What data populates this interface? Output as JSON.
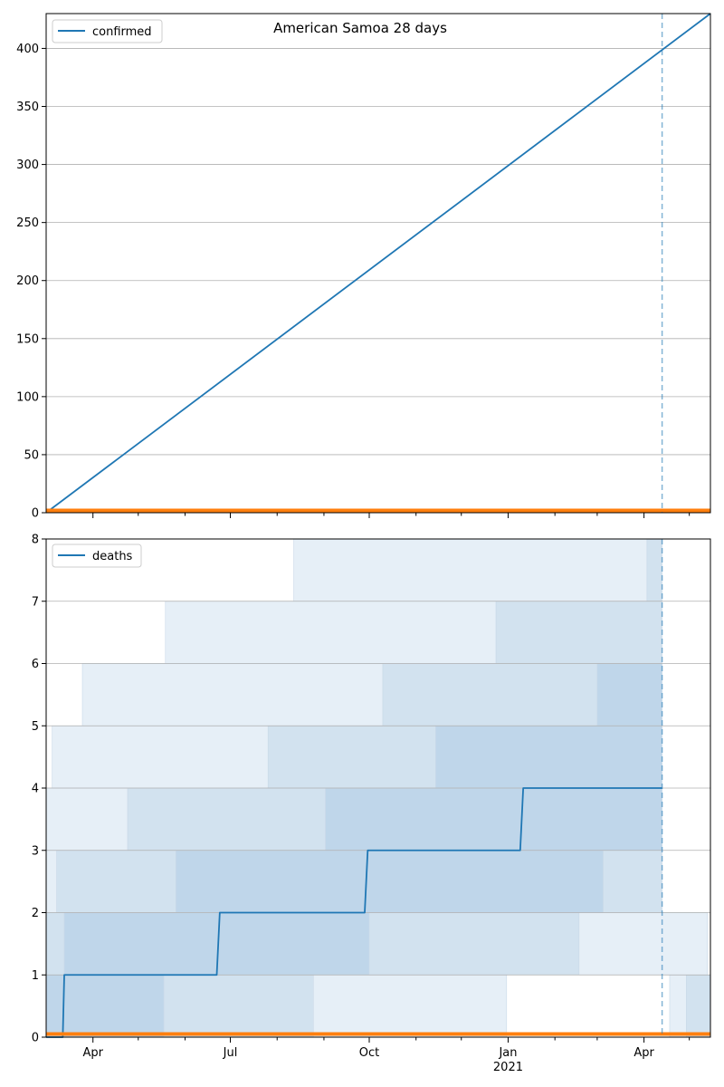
{
  "chart_data": [
    {
      "type": "line",
      "title": "American Samoa 28 days",
      "x_range": [
        "2020-03-01",
        "2021-05-15"
      ],
      "ylim": [
        0,
        430
      ],
      "y_ticks": [
        0,
        50,
        100,
        150,
        200,
        250,
        300,
        350,
        400
      ],
      "grid": "y",
      "legend": "top-left",
      "vline_date": "2021-04-13",
      "series": [
        {
          "name": "confirmed",
          "color": "#1f77b4",
          "points": [
            [
              "2020-03-01",
              0
            ],
            [
              "2021-05-15",
              430
            ]
          ]
        },
        {
          "color": "#ff7f0e",
          "points": [
            [
              "2020-03-01",
              2
            ],
            [
              "2021-05-15",
              2
            ]
          ]
        }
      ]
    },
    {
      "type": "line",
      "ylim": [
        0,
        8
      ],
      "y_ticks": [
        0,
        1,
        2,
        3,
        4,
        5,
        6,
        7,
        8
      ],
      "x_ticks": [
        {
          "date": "2020-04-01",
          "label": "Apr",
          "sub": ""
        },
        {
          "date": "2020-07-01",
          "label": "Jul",
          "sub": ""
        },
        {
          "date": "2020-10-01",
          "label": "Oct",
          "sub": ""
        },
        {
          "date": "2021-01-01",
          "label": "Jan",
          "sub": "2021"
        },
        {
          "date": "2021-04-01",
          "label": "Apr",
          "sub": ""
        }
      ],
      "grid": "y",
      "legend": "top-left",
      "vline_date": "2021-04-13",
      "series": [
        {
          "name": "deaths",
          "color": "#1f77b4",
          "points": [
            [
              "2020-03-01",
              0
            ],
            [
              "2020-03-12",
              0
            ],
            [
              "2020-03-13",
              1
            ],
            [
              "2020-06-22",
              1
            ],
            [
              "2020-06-24",
              2
            ],
            [
              "2020-09-28",
              2
            ],
            [
              "2020-09-30",
              3
            ],
            [
              "2021-01-09",
              3
            ],
            [
              "2021-01-11",
              4
            ],
            [
              "2021-04-13",
              4
            ]
          ]
        },
        {
          "color": "#ff7f0e",
          "points": [
            [
              "2020-03-01",
              0.05
            ],
            [
              "2021-05-15",
              0.05
            ]
          ]
        }
      ],
      "bands": [
        {
          "y0": 0,
          "y1": 1,
          "segments": [
            [
              "2020-03-01",
              "2020-05-18",
              3
            ],
            [
              "2020-05-18",
              "2020-08-25",
              2
            ],
            [
              "2020-08-25",
              "2020-12-31",
              1
            ],
            [
              "2020-12-31",
              "2021-04-18",
              0
            ],
            [
              "2021-04-18",
              "2021-04-29",
              1
            ],
            [
              "2021-04-29",
              "2021-05-15",
              2
            ]
          ]
        },
        {
          "y0": 1,
          "y1": 2,
          "segments": [
            [
              "2020-03-01",
              "2020-03-13",
              2
            ],
            [
              "2020-03-13",
              "2020-10-01",
              3
            ],
            [
              "2020-10-01",
              "2021-02-17",
              2
            ],
            [
              "2021-02-17",
              "2021-05-13",
              1
            ],
            [
              "2021-05-13",
              "2021-05-15",
              0
            ]
          ]
        },
        {
          "y0": 2,
          "y1": 3,
          "segments": [
            [
              "2020-03-01",
              "2020-03-08",
              1
            ],
            [
              "2020-03-08",
              "2020-05-26",
              2
            ],
            [
              "2020-05-26",
              "2021-03-05",
              3
            ],
            [
              "2021-03-05",
              "2021-04-13",
              2
            ],
            [
              "2021-04-13",
              "2021-05-15",
              0
            ]
          ]
        },
        {
          "y0": 3,
          "y1": 4,
          "segments": [
            [
              "2020-03-01",
              "2020-04-24",
              1
            ],
            [
              "2020-04-24",
              "2020-09-02",
              2
            ],
            [
              "2020-09-02",
              "2021-04-13",
              3
            ],
            [
              "2021-04-13",
              "2021-05-15",
              0
            ]
          ]
        },
        {
          "y0": 4,
          "y1": 5,
          "segments": [
            [
              "2020-03-01",
              "2020-03-05",
              0
            ],
            [
              "2020-03-05",
              "2020-07-26",
              1
            ],
            [
              "2020-07-26",
              "2020-11-14",
              2
            ],
            [
              "2020-11-14",
              "2021-04-13",
              3
            ],
            [
              "2021-04-13",
              "2021-05-15",
              0
            ]
          ]
        },
        {
          "y0": 5,
          "y1": 6,
          "segments": [
            [
              "2020-03-01",
              "2020-03-25",
              0
            ],
            [
              "2020-03-25",
              "2020-10-10",
              1
            ],
            [
              "2020-10-10",
              "2021-03-01",
              2
            ],
            [
              "2021-03-01",
              "2021-04-13",
              3
            ],
            [
              "2021-04-13",
              "2021-05-15",
              0
            ]
          ]
        },
        {
          "y0": 6,
          "y1": 7,
          "segments": [
            [
              "2020-03-01",
              "2020-05-19",
              0
            ],
            [
              "2020-05-19",
              "2020-12-24",
              1
            ],
            [
              "2020-12-24",
              "2021-04-13",
              2
            ],
            [
              "2021-04-13",
              "2021-05-15",
              0
            ]
          ]
        },
        {
          "y0": 7,
          "y1": 8,
          "segments": [
            [
              "2020-03-01",
              "2020-08-12",
              0
            ],
            [
              "2020-08-12",
              "2021-04-03",
              1
            ],
            [
              "2021-04-03",
              "2021-04-13",
              2
            ],
            [
              "2021-04-13",
              "2021-05-15",
              0
            ]
          ]
        }
      ]
    }
  ]
}
